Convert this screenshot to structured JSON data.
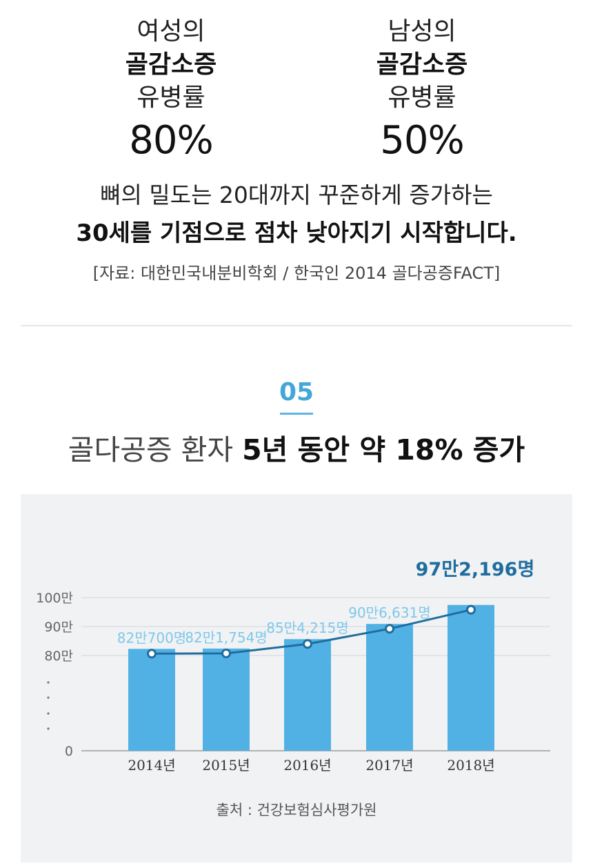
{
  "female": {
    "line1": "여성의",
    "line2": "골감소증",
    "line3": "유병률",
    "value": "80%"
  },
  "male": {
    "line1": "남성의",
    "line2": "골감소증",
    "line3": "유병률",
    "value": "50%"
  },
  "desc": {
    "line1": "뼈의 밀도는 20대까지 꾸준하게 증가하는",
    "line2": "30세를 기점으로 점차 낮아지기 시작합니다.",
    "source": "[자료: 대한민국내분비학회 / 한국인 2014 골다공증FACT]"
  },
  "section": {
    "number": "05",
    "title_light": "골다공증 환자",
    "title_bold": "5년 동안 약 18% 증가"
  },
  "chart_source": "출처 : 건강보험심사평가원",
  "colors": {
    "bar": "#52b1e4",
    "line": "#1f6d9e",
    "accent": "#44a7d8",
    "value_label": "#7ec8ea",
    "highlight_label": "#1f6d9e"
  },
  "chart_data": {
    "type": "bar",
    "categories": [
      "2014년",
      "2015년",
      "2016년",
      "2017년",
      "2018년"
    ],
    "values": [
      820700,
      821754,
      854215,
      906631,
      972196
    ],
    "series": [
      {
        "values": [
          820700,
          821754,
          854215,
          906631,
          972196
        ],
        "render": "bar"
      },
      {
        "values": [
          820700,
          821754,
          854215,
          906631,
          972196
        ],
        "render": "line"
      }
    ],
    "data_labels": [
      "82만700명",
      "82만1,754명",
      "85만4,215명",
      "90만6,631명",
      "97만2,196명"
    ],
    "y_tick_labels": [
      "0",
      "80만",
      "90만",
      "100만"
    ],
    "y_tick_values": [
      0,
      800000,
      900000,
      1000000
    ],
    "axis_break": "between 0 and 80만",
    "ylim": [
      700000,
      1000000
    ],
    "grid": true,
    "highlight_last": true
  }
}
